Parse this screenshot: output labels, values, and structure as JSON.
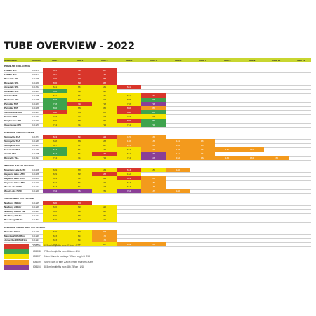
{
  "title": "TUBE OVERVIEW - 2022",
  "colors": {
    "header": "#c8d630",
    "red": "#d9362b",
    "green": "#3fa34d",
    "yellow": "#f5e400",
    "orange": "#f39a1d",
    "purple": "#8a3f96"
  },
  "columns": [
    "Model name",
    "Item No.",
    "Tube 1",
    "Tube 2",
    "Tube 3",
    "Tube 4",
    "Tube 5",
    "Tube 6",
    "Tube 7",
    "Tube 8",
    "Tube 9",
    "Tube 10",
    "Tube 11"
  ],
  "sections": [
    {
      "title": "PRIME AIR COLLECTION",
      "rows": [
        {
          "name": "Lindale 3PA",
          "item": "111176",
          "tubes": [
            [
              "red",
              "625"
            ],
            [
              "red",
              "720"
            ],
            [
              "red",
              "467"
            ]
          ]
        },
        {
          "name": "Lindale 5PA",
          "item": "111177",
          "tubes": [
            [
              "red",
              "467"
            ],
            [
              "red",
              "467"
            ],
            [
              "red",
              "720"
            ]
          ]
        },
        {
          "name": "Rosedale 4PA",
          "item": "111178",
          "tubes": [
            [
              "red",
              "720"
            ],
            [
              "red",
              "720"
            ],
            [
              "red",
              "468"
            ]
          ]
        },
        {
          "name": "Rosedale 5PA",
          "item": "111180",
          "tubes": [
            [
              "red",
              "696"
            ],
            [
              "red",
              "696"
            ],
            [
              "red",
              "468"
            ]
          ]
        },
        {
          "name": "Aosedale 5PA",
          "item": "111362",
          "tubes": [
            [
              "yellow",
              "631"
            ],
            [
              "yellow",
              "631"
            ],
            [
              "yellow",
              "631"
            ],
            [
              "red",
              "631"
            ]
          ]
        },
        {
          "name": "Aosedale 6PA",
          "item": "111269",
          "tubes": [
            [
              "green",
              "692"
            ],
            [
              "yellow",
              "692"
            ],
            [
              "yellow",
              "692"
            ]
          ]
        },
        {
          "name": "Oakdale 5PA",
          "item": "111185",
          "tubes": [
            [
              "yellow",
              "631"
            ],
            [
              "yellow",
              "631"
            ],
            [
              "yellow",
              "631"
            ],
            [
              "yellow",
              "631"
            ],
            [
              "red",
              "631"
            ]
          ]
        },
        {
          "name": "Birchdale 5PA",
          "item": "111186",
          "tubes": [
            [
              "green",
              "698"
            ],
            [
              "yellow",
              "698"
            ],
            [
              "yellow",
              "698"
            ],
            [
              "yellow",
              "698"
            ],
            [
              "green",
              "698"
            ]
          ]
        },
        {
          "name": "Parkdale 5PA",
          "item": "111187",
          "tubes": [
            [
              "green",
              "718"
            ],
            [
              "red",
              "718"
            ],
            [
              "yellow",
              "718"
            ],
            [
              "yellow",
              "718"
            ],
            [
              "purple",
              "718"
            ]
          ]
        },
        {
          "name": "Parkdale 6PA",
          "item": "111188",
          "tubes": [
            [
              "green",
              "656"
            ],
            [
              "yellow",
              "656"
            ],
            [
              "yellow",
              "656"
            ],
            [
              "red",
              "656"
            ],
            [
              "orange",
              "656"
            ]
          ]
        },
        {
          "name": "Jacksondale 5PA",
          "item": "111203",
          "tubes": [
            [
              "red",
              "638"
            ],
            [
              "yellow",
              "638"
            ],
            [
              "yellow",
              "638"
            ],
            [
              "red",
              "638"
            ],
            [
              "green",
              "638"
            ]
          ]
        },
        {
          "name": "Sandale 7PA",
          "item": "111184",
          "tubes": [
            [
              "yellow",
              "718"
            ],
            [
              "yellow",
              "718"
            ],
            [
              "yellow",
              "718"
            ],
            [
              "yellow",
              "718"
            ],
            [
              "yellow",
              "718"
            ]
          ]
        },
        {
          "name": "Knightsdale 8PA",
          "item": "111187",
          "tubes": [
            [
              "yellow",
              "865"
            ],
            [
              "yellow",
              "865"
            ],
            [
              "yellow",
              "865"
            ],
            [
              "red",
              "865"
            ],
            [
              "green",
              "865"
            ]
          ]
        },
        {
          "name": "Queensdale 8PA",
          "item": "111270",
          "tubes": [
            [
              "yellow",
              "714"
            ],
            [
              "yellow",
              "714"
            ],
            [
              "yellow",
              "714"
            ],
            [
              "yellow",
              "714"
            ],
            [
              "green",
              "714"
            ]
          ]
        }
      ]
    },
    {
      "title": "SUPERIOR AIR COLLECTION",
      "rows": [
        {
          "name": "Springville 4SA",
          "item": "111373",
          "tubes": [
            [
              "red",
              "624"
            ],
            [
              "red",
              "624"
            ],
            [
              "red",
              "624"
            ],
            [
              "orange",
              "115"
            ],
            [
              "orange",
              "165"
            ]
          ]
        },
        {
          "name": "Springville 5SA",
          "item": "111236",
          "tubes": [
            [
              "yellow",
              "638"
            ],
            [
              "yellow",
              "638"
            ],
            [
              "yellow",
              "638"
            ],
            [
              "orange",
              "136"
            ],
            [
              "orange",
              "135"
            ],
            [
              "orange",
              "131"
            ],
            [
              "orange",
              "131"
            ]
          ]
        },
        {
          "name": "Springville 6SA",
          "item": "111237",
          "tubes": [
            [
              "yellow",
              "647"
            ],
            [
              "yellow",
              "647"
            ],
            [
              "yellow",
              "647"
            ],
            [
              "orange",
              "141"
            ],
            [
              "orange",
              "141"
            ],
            [
              "orange",
              "146"
            ],
            [
              "orange",
              "131"
            ]
          ]
        },
        {
          "name": "Forestville 8SA",
          "item": "111279",
          "tubes": [
            [
              "green",
              "647"
            ],
            [
              "yellow",
              "647"
            ],
            [
              "yellow",
              "647"
            ],
            [
              "yellow",
              "647"
            ],
            [
              "orange",
              "190"
            ],
            [
              "orange",
              "138"
            ],
            [
              "orange",
              "131"
            ],
            [
              "orange",
              "131"
            ],
            [
              "orange",
              "140"
            ]
          ]
        },
        {
          "name": "Airville 6SA",
          "item": "111185",
          "tubes": [
            [
              "green",
              "644"
            ],
            [
              "yellow",
              "644"
            ],
            [
              "red",
              "644"
            ],
            [
              "yellow",
              "644"
            ],
            [
              "purple",
              "644"
            ],
            [
              "orange",
              "141"
            ],
            [
              "orange",
              "141"
            ]
          ]
        },
        {
          "name": "Rossville 7SA",
          "item": "111394",
          "tubes": [
            [
              "yellow",
              "714"
            ],
            [
              "yellow",
              "714"
            ],
            [
              "yellow",
              "714"
            ],
            [
              "yellow",
              "714"
            ],
            [
              "purple",
              "108"
            ],
            [
              "orange",
              "152"
            ],
            [
              "orange",
              "132"
            ],
            [
              "orange",
              "132"
            ],
            [
              "orange",
              "134"
            ],
            [
              "orange",
              "152"
            ]
          ]
        }
      ]
    },
    {
      "title": "IMPERIAL AIR COLLECTION",
      "rows": [
        {
          "name": "Mountain Lake 5ATC",
          "item": "111108",
          "tubes": [
            [
              "yellow",
              "639"
            ],
            [
              "yellow",
              "639"
            ],
            [
              "yellow",
              "634"
            ],
            [
              "red",
              "613"
            ],
            [
              "yellow",
              "180"
            ],
            [
              "orange",
              "180"
            ]
          ]
        },
        {
          "name": "Hayward Lake 4ATC",
          "item": "111186",
          "tubes": [
            [
              "yellow",
              "629"
            ],
            [
              "yellow",
              "629"
            ],
            [
              "red",
              "638"
            ],
            [
              "yellow",
              "162"
            ]
          ]
        },
        {
          "name": "Hayward Lake 5ATC",
          "item": "111106",
          "tubes": [
            [
              "yellow",
              "629"
            ],
            [
              "yellow",
              "629"
            ],
            [
              "yellow",
              "629"
            ],
            [
              "red",
              "614"
            ],
            [
              "orange",
              "180"
            ]
          ]
        },
        {
          "name": "Hayward Lake 6ATC",
          "item": "111107",
          "tubes": [
            [
              "yellow",
              "674"
            ],
            [
              "yellow",
              "674"
            ],
            [
              "yellow",
              "674"
            ],
            [
              "yellow",
              "613"
            ],
            [
              "orange",
              "180"
            ]
          ]
        },
        {
          "name": "Wood Lake 6ATC",
          "item": "111267",
          "tubes": [
            [
              "yellow",
              "613"
            ],
            [
              "yellow",
              "613"
            ],
            [
              "yellow",
              "613"
            ],
            [
              "yellow",
              "613"
            ],
            [
              "orange",
              "137"
            ]
          ]
        },
        {
          "name": "Wood Lake 7ATC",
          "item": "111268",
          "tubes": [
            [
              "purple",
              "784"
            ],
            [
              "purple",
              "784"
            ],
            [
              "yellow",
              "784"
            ],
            [
              "purple",
              "784"
            ],
            [
              "orange",
              "137"
            ],
            [
              "orange",
              "180"
            ]
          ]
        }
      ]
    },
    {
      "title": "AIR CRUISING COLLECTION",
      "rows": [
        {
          "name": "Newburg 160 Air",
          "item": "111245",
          "tubes": [
            [
              "red",
              "606"
            ],
            [
              "red",
              "600"
            ]
          ]
        },
        {
          "name": "Newburg 240 Air",
          "item": "111246",
          "tubes": [
            [
              "yellow",
              "620"
            ],
            [
              "yellow",
              "620"
            ],
            [
              "yellow",
              "620"
            ]
          ]
        },
        {
          "name": "Newburg 260 Air Tall",
          "item": "111244",
          "tubes": [
            [
              "yellow",
              "620"
            ],
            [
              "yellow",
              "620"
            ],
            [
              "yellow",
              "620"
            ]
          ]
        },
        {
          "name": "Wolfburg 380 Air",
          "item": "111247",
          "tubes": [
            [
              "yellow",
              "690"
            ],
            [
              "yellow",
              "668"
            ],
            [
              "yellow",
              "650"
            ]
          ]
        },
        {
          "name": "Blossburg 380 Air",
          "item": "111863",
          "tubes": [
            [
              "yellow",
              "620"
            ],
            [
              "yellow",
              "620"
            ],
            [
              "yellow",
              "620"
            ]
          ]
        }
      ]
    },
    {
      "title": "SUPERIOR AIR TOURING COLLECTION",
      "rows": [
        {
          "name": "Parkville 200SA",
          "item": "111248",
          "tubes": [
            [
              "yellow",
              "620"
            ],
            [
              "yellow",
              "620"
            ],
            [
              "orange",
              "493"
            ]
          ]
        },
        {
          "name": "Mayville 260SA Box",
          "item": "111249",
          "tubes": [
            [
              "yellow",
              "623"
            ],
            [
              "yellow",
              "623"
            ],
            [
              "orange",
              "172"
            ]
          ]
        },
        {
          "name": "Jenseville 280SA Flex",
          "item": "111297",
          "tubes": [
            [
              "yellow",
              "623"
            ],
            [
              "yellow",
              "623"
            ],
            [
              "orange",
              "172"
            ]
          ]
        },
        {
          "name": "Jenseville 440SA Flex",
          "item": "111298",
          "tubes": [
            [
              "yellow",
              "623"
            ],
            [
              "yellow",
              "623"
            ],
            [
              "yellow",
              "607"
            ],
            [
              "orange",
              "109"
            ],
            [
              "orange",
              "160"
            ]
          ]
        }
      ]
    }
  ],
  "legend": [
    {
      "color": "red",
      "code": "605006",
      "desc": "615cm length fits from 615cm - Ø16"
    },
    {
      "color": "green",
      "code": "605008",
      "desc": "725cm length fits from 665cm - Ø16"
    },
    {
      "color": "yellow",
      "code": "605007",
      "desc": "16cm Diameter package 725cm length fit Ø18"
    },
    {
      "color": "orange",
      "code": "605009",
      "desc": "Short 54cm of tube 200cm length fits from 100cm"
    },
    {
      "color": "purple",
      "code": "605104",
      "desc": "815cm length fits from 680-752cm - Ø18"
    }
  ]
}
